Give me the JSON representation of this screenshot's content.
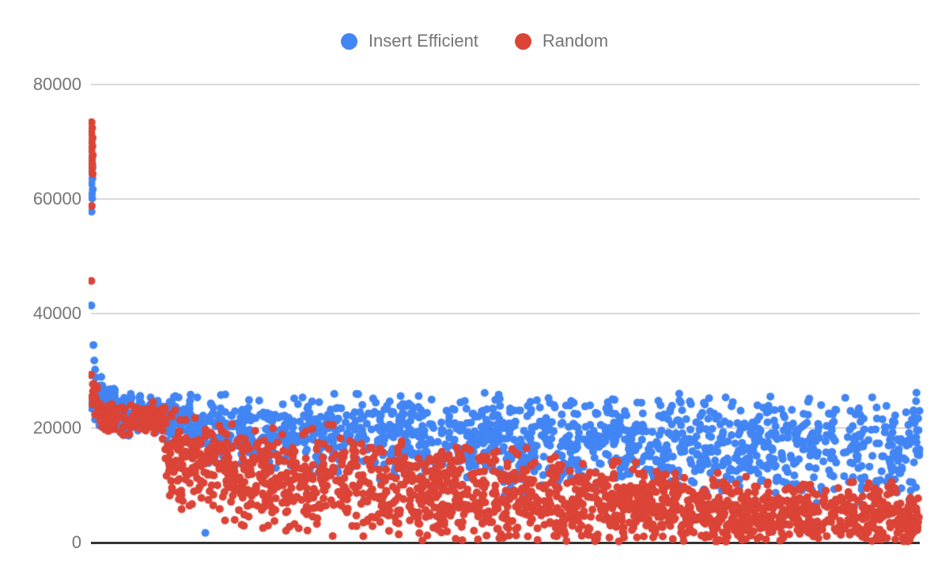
{
  "legend": {
    "items": [
      {
        "label": "Insert Efficient",
        "color": "#4285F4"
      },
      {
        "label": "Random",
        "color": "#DB4437"
      }
    ]
  },
  "chart_data": {
    "type": "scatter",
    "title": "",
    "xlabel": "",
    "ylabel": "",
    "legend_position": "top-center",
    "x_axis": {
      "tick_labels_visible": false
    },
    "y_axis": {
      "ticks": [
        0,
        20000,
        40000,
        60000,
        80000
      ],
      "range": [
        0,
        80000
      ]
    },
    "grid": {
      "line_color": "#d9d9d9",
      "baseline_color": "#333333",
      "text_color": "#757575",
      "background": "#ffffff"
    },
    "point_radius": 5,
    "layout": {
      "plot_left": 115,
      "plot_right": 1163,
      "plot_top": 107,
      "plot_bottom": 687
    },
    "series": [
      {
        "name": "Insert Efficient",
        "color": "#4285F4",
        "count": 1700,
        "seed": 1337,
        "band": {
          "x": [
            0.0,
            0.01,
            0.03,
            0.06,
            0.091,
            0.12,
            0.2,
            0.35,
            0.5,
            0.7,
            0.85,
            1.0
          ],
          "center": [
            27500,
            24500,
            23200,
            22500,
            22000,
            21000,
            19500,
            18200,
            17500,
            17000,
            16800,
            16300
          ],
          "sigma": [
            2600,
            1900,
            1700,
            1700,
            1800,
            2600,
            3300,
            3800,
            4000,
            4200,
            4300,
            4300
          ],
          "min": [
            23000,
            20000,
            19000,
            18000,
            16500,
            9500,
            8000,
            7000,
            6800,
            6500,
            6000,
            6000
          ],
          "max": [
            34500,
            29500,
            27500,
            26500,
            26500,
            26200,
            26000,
            26000,
            26200,
            26200,
            26500,
            26500
          ]
        },
        "spike_points": [
          [
            0.0015,
            67300
          ],
          [
            0.0008,
            66400
          ],
          [
            0.002,
            65500
          ],
          [
            0.001,
            64600
          ],
          [
            0.0018,
            63600
          ],
          [
            0.0006,
            62700
          ],
          [
            0.0022,
            61700
          ],
          [
            0.0012,
            60900
          ],
          [
            0.0015,
            60100
          ],
          [
            0.0008,
            57800
          ],
          [
            0.0005,
            41400
          ],
          [
            0.003,
            34500
          ],
          [
            0.004,
            31800
          ],
          [
            0.005,
            30200
          ]
        ],
        "outlier_points": [
          [
            0.138,
            1700
          ]
        ]
      },
      {
        "name": "Random",
        "color": "#DB4437",
        "count": 2000,
        "seed": 7331,
        "band": {
          "x": [
            0.0,
            0.01,
            0.03,
            0.06,
            0.088,
            0.093,
            0.12,
            0.2,
            0.3,
            0.4,
            0.5,
            0.65,
            0.8,
            1.0
          ],
          "center": [
            26000,
            23000,
            21800,
            21500,
            21300,
            15000,
            13500,
            12000,
            10500,
            9000,
            8000,
            6200,
            4800,
            4200
          ],
          "sigma": [
            2300,
            1800,
            1500,
            1400,
            1500,
            4200,
            4300,
            4600,
            4600,
            4600,
            4500,
            3900,
            3000,
            2700
          ],
          "min": [
            21000,
            19000,
            18500,
            18000,
            17000,
            4800,
            4200,
            2500,
            800,
            150,
            150,
            150,
            150,
            150
          ],
          "max": [
            29500,
            27000,
            25500,
            25000,
            25000,
            25000,
            24000,
            22500,
            20500,
            18500,
            17000,
            14500,
            11500,
            10500
          ]
        },
        "spike_points": [
          [
            0.0008,
            73400
          ],
          [
            0.0015,
            72400
          ],
          [
            0.0005,
            71500
          ],
          [
            0.002,
            70700
          ],
          [
            0.001,
            70000
          ],
          [
            0.0018,
            69200
          ],
          [
            0.0006,
            68500
          ],
          [
            0.0022,
            67700
          ],
          [
            0.0012,
            66900
          ],
          [
            0.0016,
            66100
          ],
          [
            0.0008,
            65300
          ],
          [
            0.002,
            64400
          ],
          [
            0.001,
            58800
          ],
          [
            0.0005,
            45700
          ]
        ],
        "outlier_points": []
      }
    ]
  }
}
